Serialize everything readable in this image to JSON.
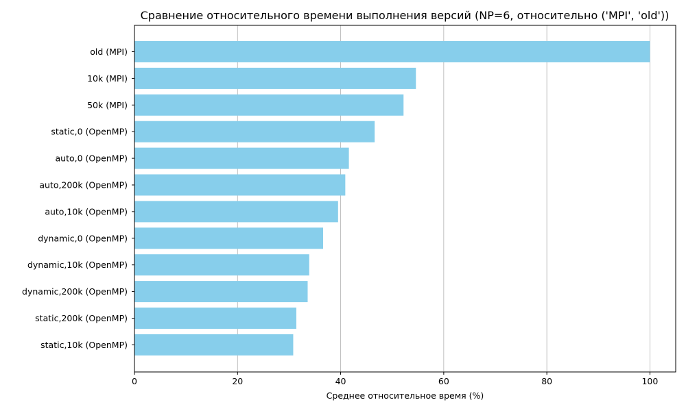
{
  "chart_data": {
    "type": "bar",
    "orientation": "horizontal",
    "title": "Сравнение относительного времени выполнения версий (NP=6, относительно ('MPI', 'old'))",
    "xlabel": "Среднее относительное время (%)",
    "ylabel": "",
    "xlim": [
      0,
      105
    ],
    "xticks": [
      0,
      20,
      40,
      60,
      80,
      100
    ],
    "grid": "x",
    "bar_color": "#87ceeb",
    "categories": [
      "old (MPI)",
      "10k (MPI)",
      "50k (MPI)",
      "static,0 (OpenMP)",
      "auto,0 (OpenMP)",
      "auto,200k (OpenMP)",
      "auto,10k (OpenMP)",
      "dynamic,0 (OpenMP)",
      "dynamic,10k (OpenMP)",
      "dynamic,200k (OpenMP)",
      "static,200k (OpenMP)",
      "static,10k (OpenMP)"
    ],
    "values": [
      100,
      54.6,
      52.2,
      46.6,
      41.6,
      40.9,
      39.5,
      36.6,
      33.9,
      33.6,
      31.4,
      30.8
    ]
  }
}
